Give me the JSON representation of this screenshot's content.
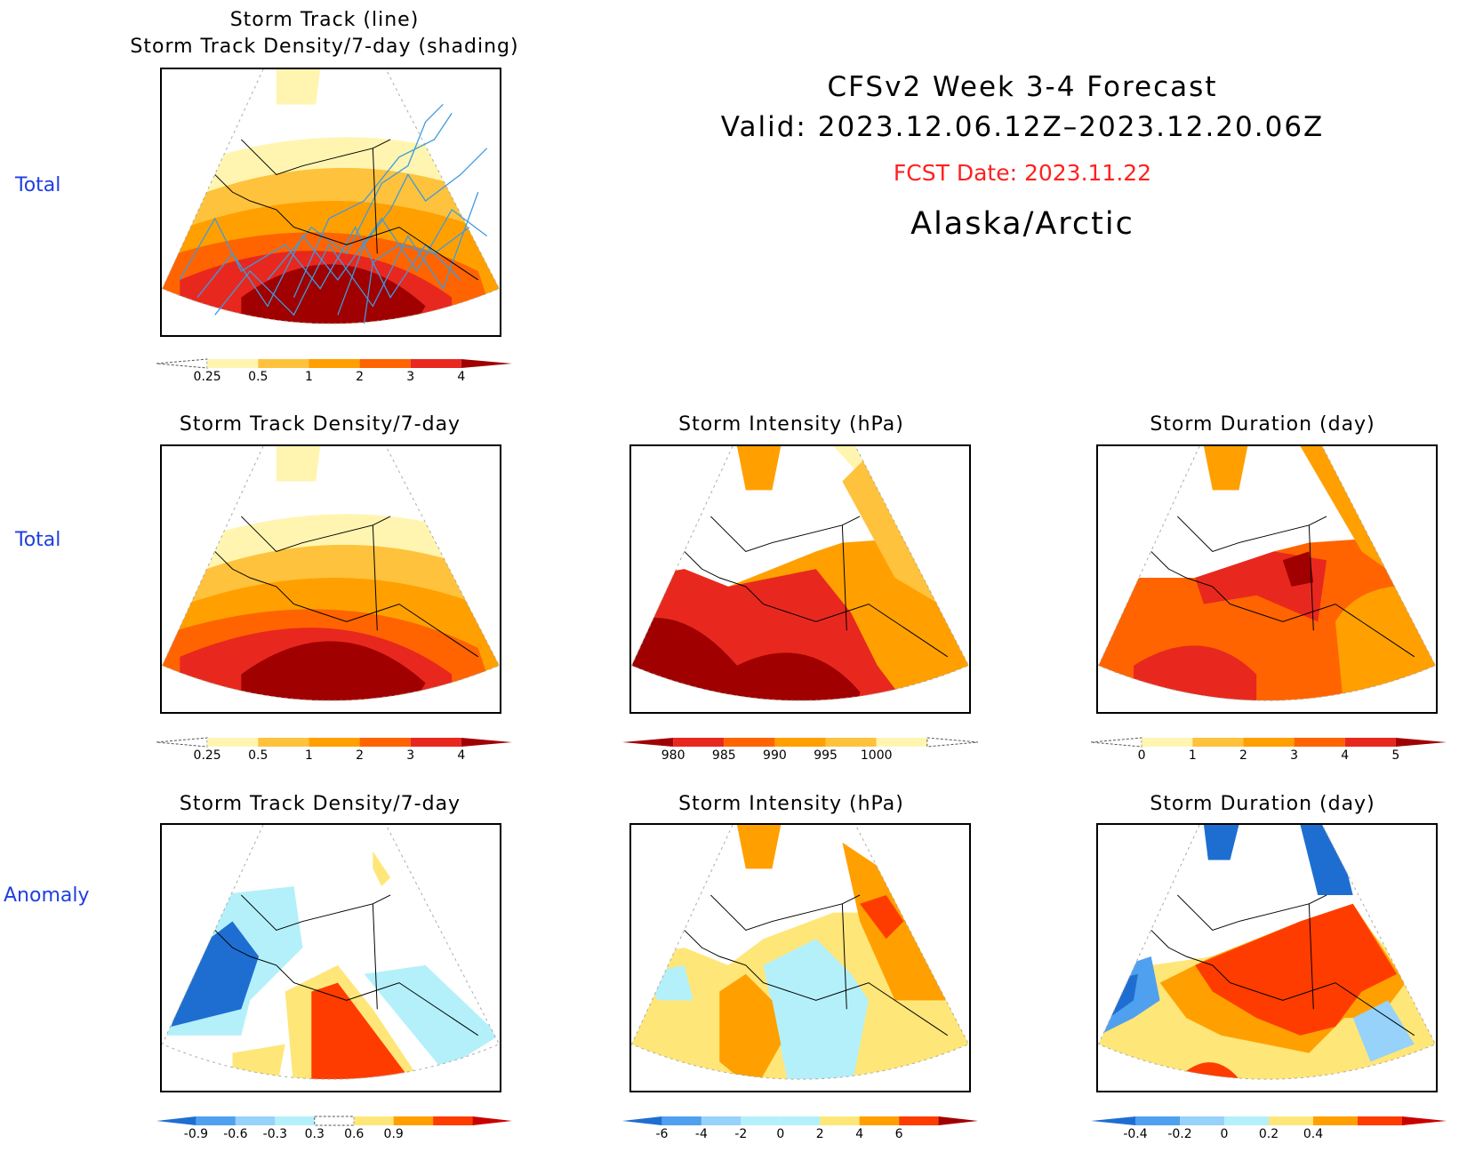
{
  "header": {
    "title": "CFSv2 Week 3-4 Forecast",
    "valid": "Valid: 2023.12.06.12Z–2023.12.20.06Z",
    "fcst_date": "FCST Date: 2023.11.22",
    "region": "Alaska/Arctic"
  },
  "row_labels": {
    "row1": "Total",
    "row2": "Total",
    "row3": "Anomaly"
  },
  "panels": {
    "p1": {
      "title_line1": "Storm Track (line)",
      "title_line2": "Storm Track Density/7-day (shading)"
    },
    "p2": {
      "title": "Storm Track Density/7-day"
    },
    "p3": {
      "title": "Storm Intensity (hPa)"
    },
    "p4": {
      "title": "Storm Duration (day)"
    },
    "p5": {
      "title": "Storm Track Density/7-day"
    },
    "p6": {
      "title": "Storm Intensity (hPa)"
    },
    "p7": {
      "title": "Storm Duration (day)"
    }
  },
  "colorbars": {
    "density_total": {
      "labels": [
        "0.25",
        "0.5",
        "1",
        "2",
        "3",
        "4"
      ],
      "colors": [
        "#ffffff",
        "#fff5b0",
        "#ffc23c",
        "#ffa000",
        "#ff6400",
        "#e8281e",
        "#a00000"
      ]
    },
    "intensity_total": {
      "labels": [
        "980",
        "985",
        "990",
        "995",
        "1000"
      ],
      "colors": [
        "#a00000",
        "#e8281e",
        "#ff6400",
        "#ffa000",
        "#ffc23c",
        "#fff5b0",
        "#ffffff"
      ]
    },
    "duration_total": {
      "labels": [
        "0",
        "1",
        "2",
        "3",
        "4",
        "5"
      ],
      "colors": [
        "#ffffff",
        "#fff5b0",
        "#ffc23c",
        "#ffa000",
        "#ff6400",
        "#e8281e",
        "#a00000"
      ]
    },
    "density_anom": {
      "labels": [
        "-0.9",
        "-0.6",
        "-0.3",
        "0.3",
        "0.6",
        "0.9"
      ],
      "colors": [
        "#1e6ed2",
        "#50a0f0",
        "#96d2fa",
        "#b4f0fa",
        "#ffffff",
        "#ffe678",
        "#ffa000",
        "#ff3c00",
        "#c80000"
      ]
    },
    "intensity_anom": {
      "labels": [
        "-6",
        "-4",
        "-2",
        "0",
        "2",
        "4",
        "6"
      ],
      "colors": [
        "#1e6ed2",
        "#50a0f0",
        "#96d2fa",
        "#b4f0fa",
        "#b4f0fa",
        "#ffe678",
        "#ffa000",
        "#ff3c00",
        "#a00000"
      ]
    },
    "duration_anom": {
      "labels": [
        "-0.4",
        "-0.2",
        "0",
        "0.2",
        "0.4"
      ],
      "colors": [
        "#1e6ed2",
        "#50a0f0",
        "#96d2fa",
        "#b4f0fa",
        "#ffe678",
        "#ffa000",
        "#ff3c00",
        "#c80000"
      ]
    }
  },
  "colors": {
    "row_label": "#1f3fe0",
    "fcst_date": "#ff2020",
    "track_line": "#3c9be0"
  }
}
